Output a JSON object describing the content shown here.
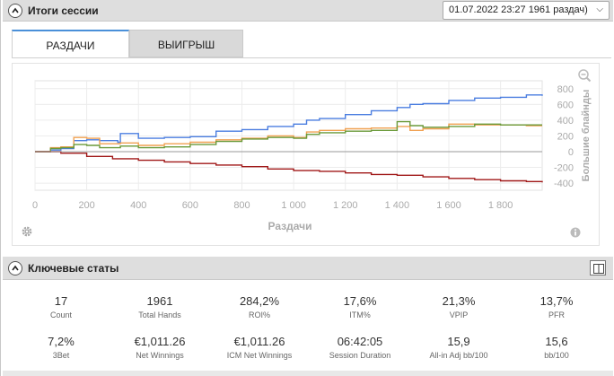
{
  "session_header": {
    "title": "Итоги сессии",
    "select_value": "01.07.2022 23:27 1961 раздач)"
  },
  "tabs": [
    {
      "label": "РАЗДАЧИ",
      "active": true
    },
    {
      "label": "ВЫИГРЫШ",
      "active": false
    }
  ],
  "chart_data": {
    "type": "line",
    "xlabel": "Раздачи",
    "ylabel": "Большие блайнды",
    "xlim": [
      0,
      1961
    ],
    "ylim": [
      -490,
      900
    ],
    "x_ticks": [
      "0",
      "200",
      "400",
      "600",
      "800",
      "1 000",
      "1 200",
      "1 400",
      "1 600",
      "1 800"
    ],
    "y_ticks": [
      "800",
      "600",
      "400",
      "200",
      "0",
      "-200",
      "-400"
    ],
    "series": [
      {
        "color": "#4a7de0",
        "points": [
          [
            0,
            0
          ],
          [
            60,
            20
          ],
          [
            100,
            40
          ],
          [
            150,
            140
          ],
          [
            200,
            150
          ],
          [
            250,
            140
          ],
          [
            320,
            120
          ],
          [
            330,
            230
          ],
          [
            400,
            170
          ],
          [
            500,
            180
          ],
          [
            600,
            190
          ],
          [
            700,
            260
          ],
          [
            800,
            280
          ],
          [
            900,
            320
          ],
          [
            1000,
            350
          ],
          [
            1050,
            400
          ],
          [
            1100,
            420
          ],
          [
            1200,
            470
          ],
          [
            1300,
            520
          ],
          [
            1400,
            560
          ],
          [
            1450,
            600
          ],
          [
            1500,
            610
          ],
          [
            1600,
            650
          ],
          [
            1700,
            680
          ],
          [
            1800,
            690
          ],
          [
            1900,
            720
          ],
          [
            1961,
            710
          ]
        ]
      },
      {
        "color": "#f0a050",
        "points": [
          [
            0,
            0
          ],
          [
            60,
            50
          ],
          [
            100,
            60
          ],
          [
            150,
            180
          ],
          [
            200,
            170
          ],
          [
            250,
            100
          ],
          [
            330,
            110
          ],
          [
            400,
            80
          ],
          [
            500,
            100
          ],
          [
            600,
            120
          ],
          [
            700,
            150
          ],
          [
            800,
            170
          ],
          [
            900,
            200
          ],
          [
            1000,
            180
          ],
          [
            1050,
            250
          ],
          [
            1100,
            270
          ],
          [
            1200,
            290
          ],
          [
            1300,
            300
          ],
          [
            1400,
            320
          ],
          [
            1450,
            270
          ],
          [
            1500,
            290
          ],
          [
            1600,
            350
          ],
          [
            1700,
            340
          ],
          [
            1800,
            340
          ],
          [
            1900,
            330
          ],
          [
            1961,
            330
          ]
        ]
      },
      {
        "color": "#6a9a3a",
        "points": [
          [
            0,
            0
          ],
          [
            60,
            40
          ],
          [
            100,
            50
          ],
          [
            150,
            90
          ],
          [
            200,
            80
          ],
          [
            250,
            50
          ],
          [
            330,
            70
          ],
          [
            400,
            50
          ],
          [
            500,
            60
          ],
          [
            600,
            90
          ],
          [
            700,
            130
          ],
          [
            800,
            160
          ],
          [
            900,
            180
          ],
          [
            1000,
            170
          ],
          [
            1050,
            220
          ],
          [
            1100,
            240
          ],
          [
            1200,
            260
          ],
          [
            1300,
            270
          ],
          [
            1400,
            380
          ],
          [
            1450,
            330
          ],
          [
            1500,
            310
          ],
          [
            1600,
            320
          ],
          [
            1700,
            350
          ],
          [
            1800,
            340
          ],
          [
            1900,
            340
          ],
          [
            1961,
            340
          ]
        ]
      },
      {
        "color": "#a01818",
        "points": [
          [
            0,
            0
          ],
          [
            100,
            -20
          ],
          [
            200,
            -60
          ],
          [
            300,
            -90
          ],
          [
            400,
            -110
          ],
          [
            500,
            -130
          ],
          [
            600,
            -150
          ],
          [
            700,
            -170
          ],
          [
            800,
            -190
          ],
          [
            900,
            -220
          ],
          [
            1000,
            -240
          ],
          [
            1100,
            -250
          ],
          [
            1200,
            -270
          ],
          [
            1300,
            -290
          ],
          [
            1400,
            -300
          ],
          [
            1500,
            -320
          ],
          [
            1600,
            -340
          ],
          [
            1700,
            -355
          ],
          [
            1800,
            -370
          ],
          [
            1900,
            -380
          ],
          [
            1961,
            -390
          ]
        ]
      },
      {
        "color": "#9a9a9a",
        "points": [
          [
            0,
            0
          ],
          [
            1961,
            0
          ]
        ]
      }
    ]
  },
  "key_stats": {
    "title": "Ключевые статы",
    "items": [
      {
        "value": "17",
        "label": "Count"
      },
      {
        "value": "1961",
        "label": "Total Hands"
      },
      {
        "value": "284,2%",
        "label": "ROI%"
      },
      {
        "value": "17,6%",
        "label": "ITM%"
      },
      {
        "value": "21,3%",
        "label": "VPIP"
      },
      {
        "value": "13,7%",
        "label": "PFR"
      },
      {
        "value": "7,2%",
        "label": "3Bet"
      },
      {
        "value": "€1,011.26",
        "label": "Net Winnings"
      },
      {
        "value": "€1,011.26",
        "label": "ICM Net Winnings"
      },
      {
        "value": "06:42:05",
        "label": "Session Duration"
      },
      {
        "value": "15,9",
        "label": "All-in Adj bb/100"
      },
      {
        "value": "15,6",
        "label": "bb/100"
      }
    ]
  }
}
